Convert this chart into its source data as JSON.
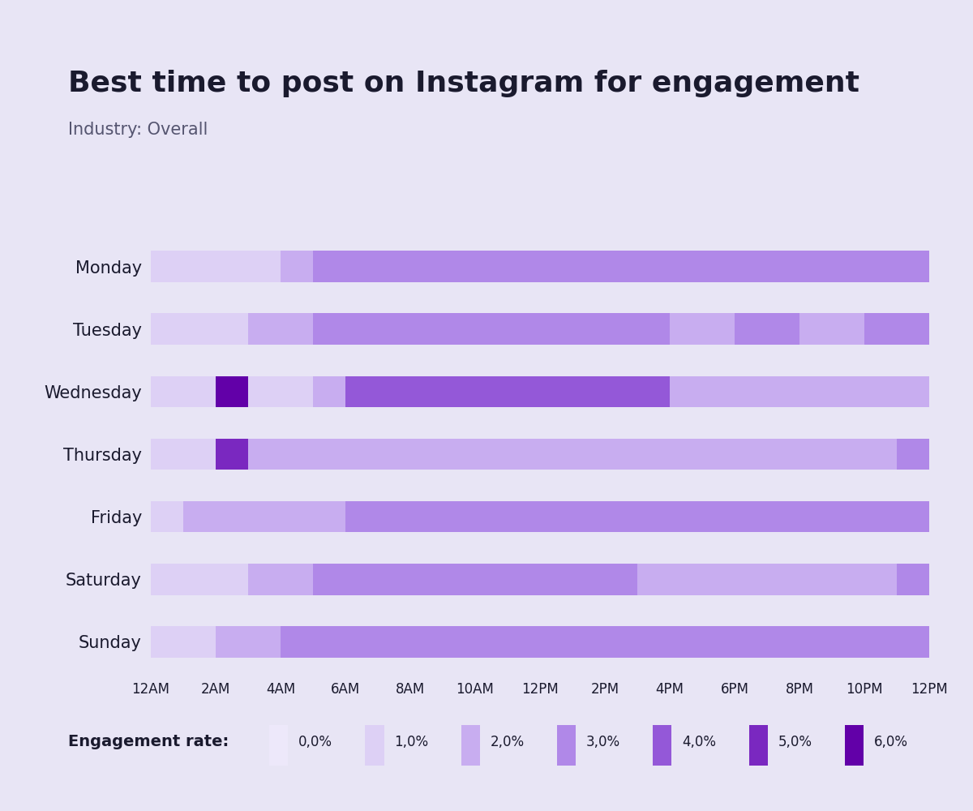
{
  "title": "Best time to post on Instagram for engagement",
  "subtitle": "Industry: Overall",
  "background_color": "#e8e5f5",
  "days": [
    "Monday",
    "Tuesday",
    "Wednesday",
    "Thursday",
    "Friday",
    "Saturday",
    "Sunday"
  ],
  "x_labels": [
    "12AM",
    "2AM",
    "4AM",
    "6AM",
    "8AM",
    "10AM",
    "12PM",
    "2PM",
    "4PM",
    "6PM",
    "8PM",
    "10PM",
    "12PM"
  ],
  "x_ticks": [
    0,
    2,
    4,
    6,
    8,
    10,
    12,
    14,
    16,
    18,
    20,
    22,
    24
  ],
  "engagement_colors": [
    "#ede8fa",
    "#ddd0f5",
    "#c8adf0",
    "#b088e8",
    "#9458d8",
    "#7a28c0",
    "#6200a8"
  ],
  "engagement_labels": [
    "0,0%",
    "1,0%",
    "2,0%",
    "3,0%",
    "4,0%",
    "5,0%",
    "6,0%"
  ],
  "engagement": {
    "Monday": [
      1,
      1,
      1,
      1,
      2,
      3,
      3,
      3,
      3,
      3,
      3,
      3,
      3,
      3,
      3,
      3,
      3,
      3,
      3,
      3,
      3,
      3,
      3,
      3
    ],
    "Tuesday": [
      1,
      1,
      1,
      2,
      2,
      3,
      3,
      3,
      3,
      3,
      3,
      3,
      3,
      3,
      3,
      3,
      2,
      2,
      3,
      3,
      2,
      2,
      3,
      3
    ],
    "Wednesday": [
      1,
      1,
      6,
      1,
      1,
      2,
      4,
      4,
      4,
      4,
      4,
      4,
      4,
      4,
      4,
      4,
      2,
      2,
      2,
      2,
      2,
      2,
      2,
      2
    ],
    "Thursday": [
      1,
      1,
      5,
      2,
      2,
      2,
      2,
      2,
      2,
      2,
      2,
      2,
      2,
      2,
      2,
      2,
      2,
      2,
      2,
      2,
      2,
      2,
      2,
      3
    ],
    "Friday": [
      1,
      2,
      2,
      2,
      2,
      2,
      3,
      3,
      3,
      3,
      3,
      3,
      3,
      3,
      3,
      3,
      3,
      3,
      3,
      3,
      3,
      3,
      3,
      3
    ],
    "Saturday": [
      1,
      1,
      1,
      2,
      2,
      3,
      3,
      3,
      3,
      3,
      3,
      3,
      3,
      3,
      3,
      2,
      2,
      2,
      2,
      2,
      2,
      2,
      2,
      3
    ],
    "Sunday": [
      1,
      1,
      2,
      2,
      3,
      3,
      3,
      3,
      3,
      3,
      3,
      3,
      3,
      3,
      3,
      3,
      3,
      3,
      3,
      3,
      3,
      3,
      3,
      3
    ]
  },
  "title_fontsize": 26,
  "subtitle_fontsize": 15,
  "tick_fontsize": 13,
  "bar_height": 0.5,
  "text_color": "#1a1a2e",
  "subtitle_color": "#555570"
}
